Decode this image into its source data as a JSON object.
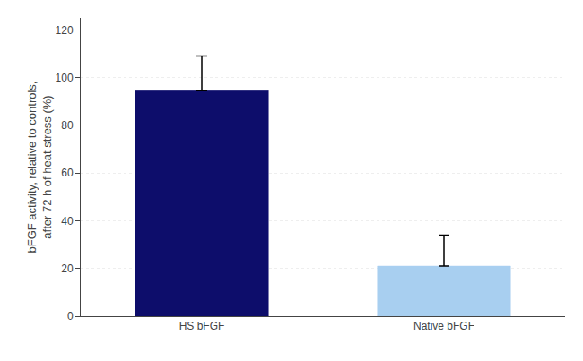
{
  "chart_data": {
    "type": "bar",
    "categories": [
      "HS bFGF",
      "Native bFGF"
    ],
    "values": [
      94.5,
      21.0
    ],
    "errors_upper": [
      14.5,
      13.0
    ],
    "colors": [
      "#0d0d6b",
      "#a8cff0"
    ],
    "ylabel": "bFGF activity, relative to controls,\nafter 72 h of heat stress (%)",
    "ylim": [
      0,
      125
    ],
    "yticks": [
      0,
      20,
      40,
      60,
      80,
      100,
      120
    ],
    "grid": true
  }
}
